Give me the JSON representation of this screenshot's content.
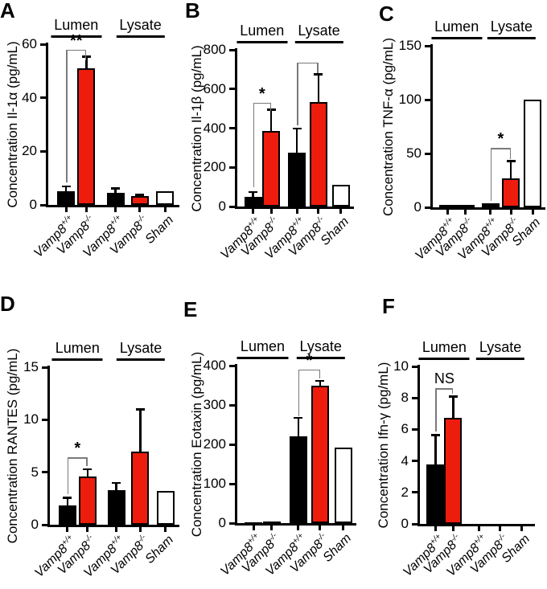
{
  "colors": {
    "bar_red": "#ee1c0d",
    "bar_black": "#000000",
    "bar_white": "#ffffff",
    "axis_black": "#000000",
    "bracket_gray": "#7a7a7a"
  },
  "chart_data": [
    {
      "type": "bar",
      "panel": "A",
      "ylabel": "Concentration Il-1α (pg/mL)",
      "ylim": [
        0,
        60
      ],
      "yticks": [
        0,
        20,
        40,
        60
      ],
      "categories": [
        {
          "base": "Vamp8",
          "sup": "+/+"
        },
        {
          "base": "Vamp8",
          "sup": "-/-"
        },
        {
          "base": "Vamp8",
          "sup": "+/+"
        },
        {
          "base": "Vamp8",
          "sup": "-/-"
        },
        {
          "base": "Sham",
          "sup": ""
        }
      ],
      "groups": [
        {
          "label": "Lumen",
          "from": 0,
          "to": 1
        },
        {
          "label": "Lysate",
          "from": 2,
          "to": 4
        }
      ],
      "values": [
        5,
        51,
        4.5,
        3.2,
        5.2
      ],
      "errors": [
        2,
        4.5,
        1.8,
        0.6,
        0
      ],
      "bar_colors": [
        "black",
        "red",
        "black",
        "red",
        "white"
      ],
      "significance": [
        {
          "from": 0,
          "to": 1,
          "label": "**",
          "top": 58,
          "left_end": 8.5,
          "right_end": 54
        }
      ]
    },
    {
      "type": "bar",
      "panel": "B",
      "ylabel": "Concentration Il-1β (pg/mL)",
      "ylim": [
        0,
        800
      ],
      "yticks": [
        0,
        200,
        400,
        600,
        800
      ],
      "categories": [
        {
          "base": "Vamp8",
          "sup": "+/+"
        },
        {
          "base": "Vamp8",
          "sup": "-/-"
        },
        {
          "base": "Vamp8",
          "sup": "+/+"
        },
        {
          "base": "Vamp8",
          "sup": "-/-"
        },
        {
          "base": "Sham",
          "sup": ""
        }
      ],
      "groups": [
        {
          "label": "Lumen",
          "from": 0,
          "to": 1
        },
        {
          "label": "Lysate",
          "from": 2,
          "to": 4
        }
      ],
      "values": [
        50,
        385,
        275,
        535,
        110
      ],
      "errors": [
        25,
        110,
        125,
        140,
        0
      ],
      "bar_colors": [
        "black",
        "red",
        "black",
        "red",
        "white"
      ],
      "significance": [
        {
          "from": 0,
          "to": 1,
          "label": "*",
          "top": 530,
          "left_end": 100,
          "right_end": 490
        },
        {
          "from": 2,
          "to": 3,
          "label": "",
          "top": 735,
          "left_end": 415,
          "right_end": 680
        }
      ]
    },
    {
      "type": "bar",
      "panel": "C",
      "ylabel": "Concentration TNF-α (pg/mL)",
      "ylim": [
        0,
        150
      ],
      "yticks": [
        0,
        50,
        100,
        150
      ],
      "categories": [
        {
          "base": "Vamp8",
          "sup": "+/+"
        },
        {
          "base": "Vamp8",
          "sup": "-/-"
        },
        {
          "base": "Vamp8",
          "sup": "+/+"
        },
        {
          "base": "Vamp8",
          "sup": "-/-"
        },
        {
          "base": "Sham",
          "sup": ""
        }
      ],
      "groups": [
        {
          "label": "Lumen",
          "from": 0,
          "to": 1
        },
        {
          "label": "Lysate",
          "from": 2,
          "to": 4
        }
      ],
      "values": [
        2,
        2.5,
        3.5,
        27,
        100
      ],
      "errors": [
        0,
        0,
        0,
        16,
        0
      ],
      "bar_colors": [
        "black",
        "black",
        "black",
        "red",
        "white"
      ],
      "significance": [
        {
          "from": 2,
          "to": 3,
          "label": "*",
          "top": 55,
          "left_end": 6,
          "right_end": 45
        }
      ]
    },
    {
      "type": "bar",
      "panel": "D",
      "ylabel": "Concentration RANTES (pg/mL)",
      "ylim": [
        0,
        15
      ],
      "yticks": [
        0,
        5,
        10,
        15
      ],
      "categories": [
        {
          "base": "Vamp8",
          "sup": "+/+"
        },
        {
          "base": "Vamp8",
          "sup": "-/-"
        },
        {
          "base": "Vamp8",
          "sup": "+/+"
        },
        {
          "base": "Vamp8",
          "sup": "-/-"
        },
        {
          "base": "Sham",
          "sup": ""
        }
      ],
      "groups": [
        {
          "label": "Lumen",
          "from": 0,
          "to": 1
        },
        {
          "label": "Lysate",
          "from": 2,
          "to": 4
        }
      ],
      "values": [
        1.8,
        4.6,
        3.3,
        7,
        3.2
      ],
      "errors": [
        0.8,
        0.7,
        0.7,
        4,
        0
      ],
      "bar_colors": [
        "black",
        "red",
        "black",
        "red",
        "white"
      ],
      "significance": [
        {
          "from": 0,
          "to": 1,
          "label": "*",
          "top": 6.4,
          "left_end": 2.9,
          "right_end": 5.6
        }
      ]
    },
    {
      "type": "bar",
      "panel": "E",
      "ylabel": "Concentration Eotaxin (pg/mL)",
      "ylim": [
        0,
        400
      ],
      "yticks": [
        0,
        100,
        200,
        300,
        400
      ],
      "categories": [
        {
          "base": "Vamp8",
          "sup": "+/+"
        },
        {
          "base": "Vamp8",
          "sup": "-/-"
        },
        {
          "base": "Vamp8",
          "sup": "+/+"
        },
        {
          "base": "Vamp8",
          "sup": "-/-"
        },
        {
          "base": "Sham",
          "sup": ""
        }
      ],
      "groups": [
        {
          "label": "Lumen",
          "from": 0,
          "to": 1
        },
        {
          "label": "Lysate",
          "from": 2,
          "to": 4
        }
      ],
      "values": [
        3,
        5,
        220,
        348,
        192
      ],
      "errors": [
        0,
        0,
        48,
        14,
        0
      ],
      "bar_colors": [
        "black",
        "black",
        "black",
        "red",
        "white"
      ],
      "significance": [
        {
          "from": 2,
          "to": 3,
          "label": "*",
          "top": 390,
          "left_end": 272,
          "right_end": 368
        }
      ]
    },
    {
      "type": "bar",
      "panel": "F",
      "ylabel": "Concentration Ifn-γ (pg/mL)",
      "ylim": [
        0,
        10
      ],
      "yticks": [
        0,
        2,
        4,
        6,
        8,
        10
      ],
      "categories": [
        {
          "base": "Vamp8",
          "sup": "+/+"
        },
        {
          "base": "Vamp8",
          "sup": "-/-"
        },
        {
          "base": "Vamp8",
          "sup": "+/+"
        },
        {
          "base": "Vamp8",
          "sup": "-/-"
        },
        {
          "base": "Sham",
          "sup": ""
        }
      ],
      "groups": [
        {
          "label": "Lumen",
          "from": 0,
          "to": 1
        },
        {
          "label": "Lysate",
          "from": 2,
          "to": 4
        }
      ],
      "values": [
        3.8,
        6.75,
        0,
        0,
        0
      ],
      "errors": [
        1.85,
        1.35,
        0,
        0,
        0
      ],
      "bar_colors": [
        "black",
        "red",
        "black",
        "red",
        "white"
      ],
      "significance": [
        {
          "from": 0,
          "to": 1,
          "label": "NS",
          "top": 8.6,
          "left_end": 5.85,
          "right_end": 8.25
        }
      ]
    }
  ]
}
